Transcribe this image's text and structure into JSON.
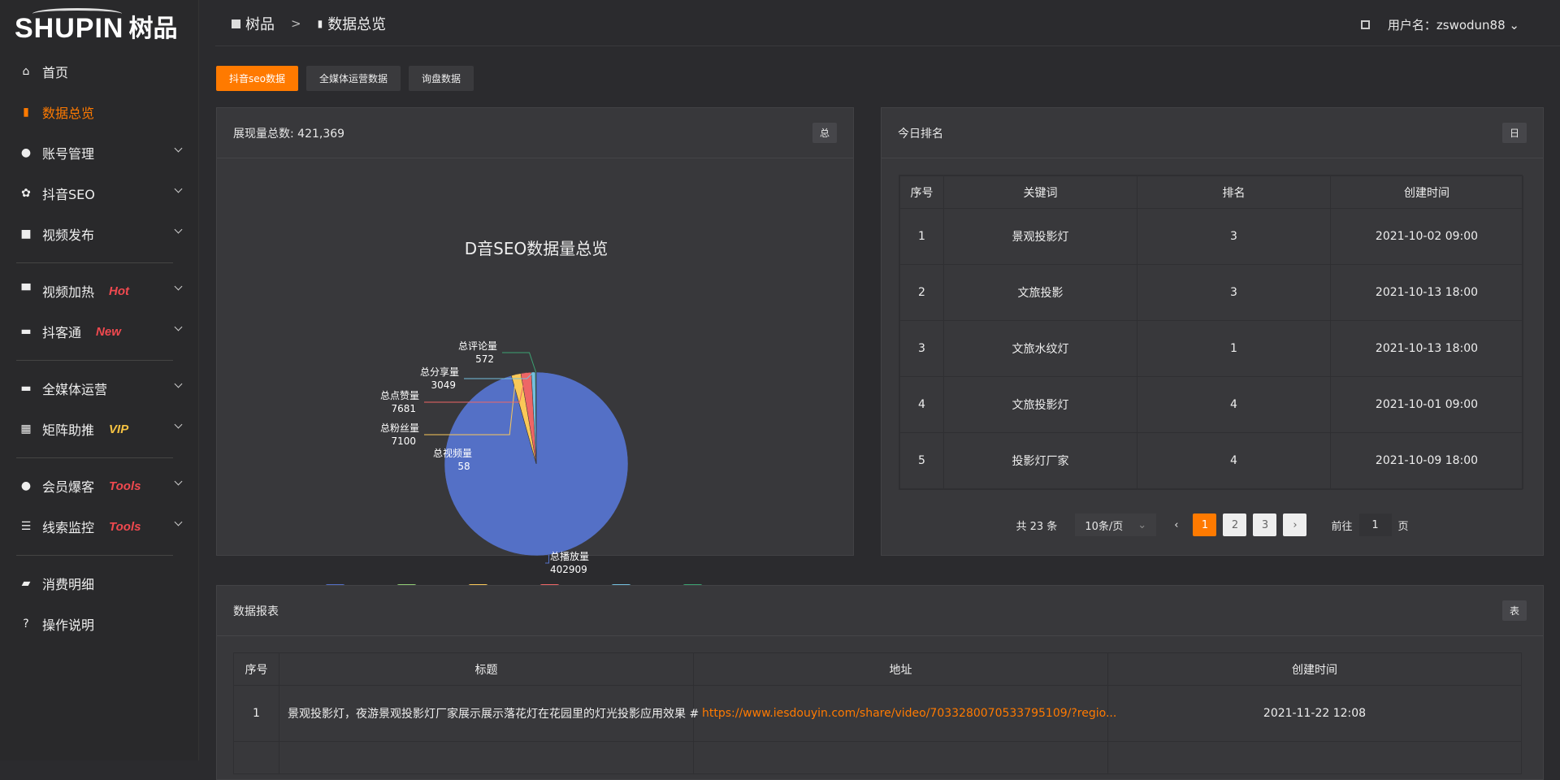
{
  "brand": {
    "logo_en": "SHUPIN",
    "logo_cn": "树品"
  },
  "sidebar": {
    "items": [
      {
        "label": "首页",
        "icon": "home-icon"
      },
      {
        "label": "数据总览",
        "icon": "bar-chart-icon",
        "active": true
      },
      {
        "label": "账号管理",
        "icon": "user-icon"
      },
      {
        "label": "抖音SEO",
        "icon": "gear-icon"
      },
      {
        "label": "视频发布",
        "icon": "camera-icon"
      },
      {
        "label": "视频加热",
        "icon": "monitor-icon",
        "tag": "Hot",
        "tag_color": "#f0494f"
      },
      {
        "label": "抖客通",
        "icon": "chat-icon",
        "tag": "New",
        "tag_color": "#f0494f"
      },
      {
        "label": "全媒体运营",
        "icon": "desktop-icon"
      },
      {
        "label": "矩阵助推",
        "icon": "grid-icon",
        "tag": "VIP",
        "tag_color": "#f5c242"
      },
      {
        "label": "会员爆客",
        "icon": "user-icon",
        "tag": "Tools",
        "tag_color": "#f0494f"
      },
      {
        "label": "线索监控",
        "icon": "sliders-icon",
        "tag": "Tools",
        "tag_color": "#f0494f"
      },
      {
        "label": "消费明细",
        "icon": "wallet-icon"
      },
      {
        "label": "操作说明",
        "icon": "question-icon"
      }
    ]
  },
  "header": {
    "breadcrumb": [
      "树品",
      "数据总览"
    ],
    "user_label": "用户名：zswodun88"
  },
  "tabs": [
    "抖音seo数据",
    "全媒体运营数据",
    "询盘数据"
  ],
  "pie_panel": {
    "title": "展现量总数: 421,369",
    "badge": "总"
  },
  "chart_data": {
    "type": "pie",
    "title": "D音SEO数据量总览",
    "legend_position": "bottom",
    "categories": [
      "总播放量",
      "总视频量",
      "总粉丝量",
      "总点赞量",
      "总分享量",
      "总评论量"
    ],
    "values": [
      402909,
      58,
      7100,
      7681,
      3049,
      572
    ],
    "colors": [
      "#5470c6",
      "#91cc75",
      "#fac858",
      "#ee6666",
      "#73c0de",
      "#3ba272"
    ]
  },
  "rank_panel": {
    "title": "今日排名",
    "badge": "日",
    "columns": [
      "序号",
      "关键词",
      "排名",
      "创建时间"
    ],
    "rows": [
      [
        "1",
        "景观投影灯",
        "3",
        "2021-10-02 09:00"
      ],
      [
        "2",
        "文旅投影",
        "3",
        "2021-10-13 18:00"
      ],
      [
        "3",
        "文旅水纹灯",
        "1",
        "2021-10-13 18:00"
      ],
      [
        "4",
        "文旅投影灯",
        "4",
        "2021-10-01 09:00"
      ],
      [
        "5",
        "投影灯厂家",
        "4",
        "2021-10-09 18:00"
      ]
    ],
    "pagination": {
      "total": "共 23 条",
      "page_size": "10条/页",
      "pages": [
        "1",
        "2",
        "3"
      ],
      "current": 1,
      "goto_label": "前往",
      "goto_value": "1",
      "page_unit": "页"
    }
  },
  "report_panel": {
    "title": "数据报表",
    "badge": "表",
    "columns": [
      "序号",
      "标题",
      "地址",
      "创建时间"
    ],
    "rows": [
      [
        "1",
        "景观投影灯，夜游景观投影灯厂家展示展示落花灯在花园里的灯光投影应用效果 #",
        "https://www.iesdouyin.com/share/video/7033280070533795109/?regio...",
        "2021-11-22 12:08"
      ]
    ]
  },
  "accent": "#ff7a00"
}
